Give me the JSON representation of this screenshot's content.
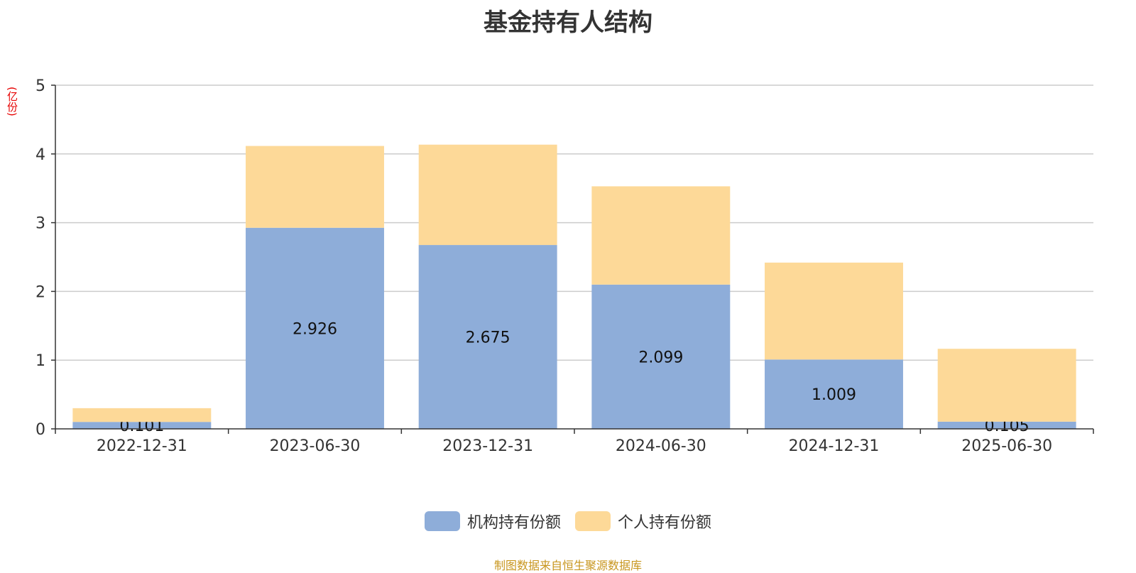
{
  "title": "基金持有人结构",
  "unit_label": "(亿份)",
  "source_text": "制图数据来自恒生聚源数据库",
  "colors": {
    "institution": "#8eadd9",
    "individual": "#fdd998",
    "grid": "#cccccc",
    "axis": "#333333"
  },
  "chart_data": {
    "type": "bar",
    "stacked": true,
    "title": "基金持有人结构",
    "ylabel": "(亿份)",
    "xlabel": "",
    "ylim": [
      0,
      5
    ],
    "yticks": [
      0,
      1,
      2,
      3,
      4,
      5
    ],
    "grid": true,
    "legend_position": "bottom-center",
    "categories": [
      "2022-12-31",
      "2023-06-30",
      "2023-12-31",
      "2024-06-30",
      "2024-12-31",
      "2025-06-30"
    ],
    "series": [
      {
        "name": "机构持有份额",
        "values": [
          0.101,
          2.926,
          2.675,
          2.099,
          1.009,
          0.105
        ],
        "data_labels": [
          "0.101",
          "2.926",
          "2.675",
          "2.099",
          "1.009",
          "0.105"
        ]
      },
      {
        "name": "个人持有份额",
        "values": [
          0.2,
          1.19,
          1.46,
          1.43,
          1.41,
          1.06
        ]
      }
    ]
  }
}
